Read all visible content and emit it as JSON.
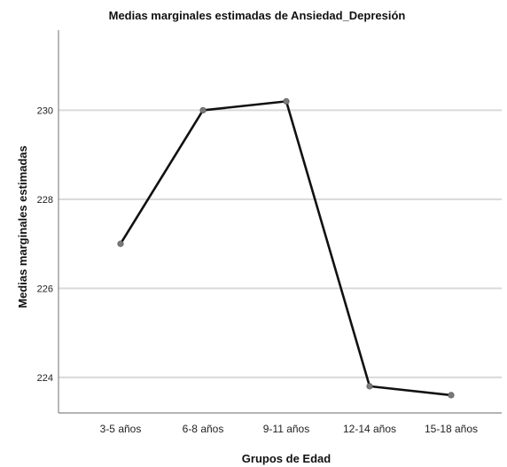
{
  "chart_data": {
    "type": "line",
    "title": "Medias marginales estimadas de Ansiedad_Depresión",
    "xlabel": "Grupos de Edad",
    "ylabel": "Medias marginales estimadas",
    "categories": [
      "3-5 años",
      "6-8 años",
      "9-11 años",
      "12-14 años",
      "15-18 años"
    ],
    "series": [
      {
        "values": [
          227.0,
          230.0,
          230.2,
          223.8,
          223.6
        ]
      }
    ],
    "yticks": [
      224,
      226,
      228,
      230
    ],
    "ylim": [
      223.2,
      231.8
    ],
    "grid": true,
    "legend": "none",
    "colors": {
      "line": "#111111",
      "marker": "#7a7a7a",
      "grid": "#d9d9d9",
      "axis": "#888888"
    }
  }
}
